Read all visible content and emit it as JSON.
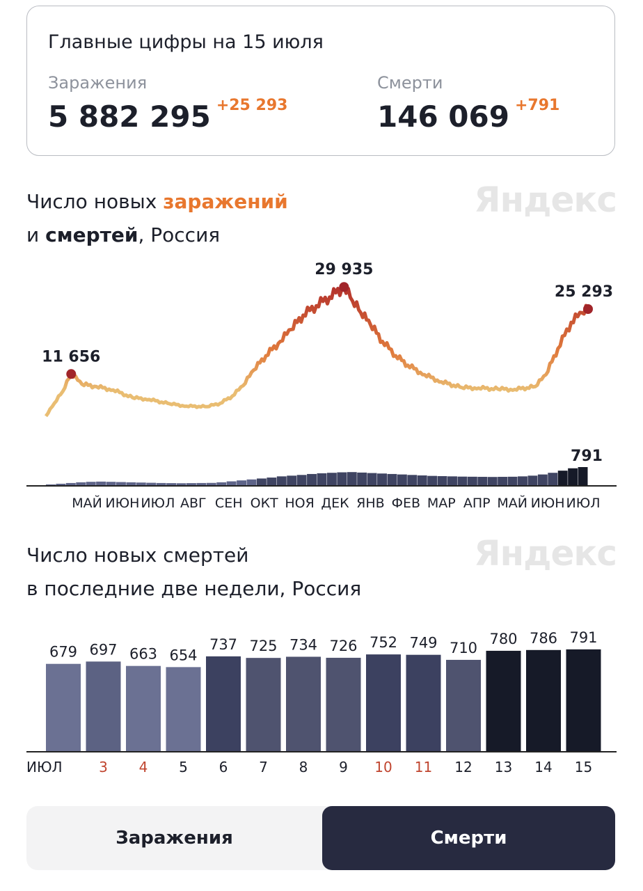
{
  "summary": {
    "title": "Главные цифры на 15 июля",
    "cases": {
      "label": "Заражения",
      "value": "5 882 295",
      "delta": "+25 293"
    },
    "deaths": {
      "label": "Смерти",
      "value": "146 069",
      "delta": "+791"
    }
  },
  "watermark": "Яндекс",
  "colors": {
    "accent": "#e8772e",
    "line_low": "#e9bd72",
    "line_high": "#b3302b",
    "dark": "#272a40",
    "holiday": "#c0452f"
  },
  "chart_data": [
    {
      "type": "line",
      "title_parts": [
        "Число новых ",
        "заражений",
        "и ",
        "смертей",
        ", Россия"
      ],
      "x_tick_labels": [
        "МАЙ",
        "ИЮН",
        "ИЮЛ",
        "АВГ",
        "СЕН",
        "ОКТ",
        "НОЯ",
        "ДЕК",
        "ЯНВ",
        "ФЕВ",
        "МАР",
        "АПР",
        "МАЙ",
        "ИЮН",
        "ИЮЛ"
      ],
      "xlim": [
        "2020-04-20",
        "2021-07-15"
      ],
      "ylim": [
        0,
        31000
      ],
      "series": [
        {
          "points": [
            [
              "2020-04-20",
              2800
            ],
            [
              "2020-04-27",
              5500
            ],
            [
              "2020-05-04",
              8000
            ],
            [
              "2020-05-11",
              11656
            ],
            [
              "2020-05-20",
              9500
            ],
            [
              "2020-06-01",
              9000
            ],
            [
              "2020-06-15",
              8300
            ],
            [
              "2020-07-01",
              6700
            ],
            [
              "2020-07-15",
              6300
            ],
            [
              "2020-08-01",
              5400
            ],
            [
              "2020-08-15",
              4900
            ],
            [
              "2020-09-01",
              4800
            ],
            [
              "2020-09-12",
              5500
            ],
            [
              "2020-09-22",
              7000
            ],
            [
              "2020-10-01",
              9200
            ],
            [
              "2020-10-10",
              12500
            ],
            [
              "2020-10-20",
              15500
            ],
            [
              "2020-11-01",
              18500
            ],
            [
              "2020-11-10",
              21000
            ],
            [
              "2020-11-20",
              24000
            ],
            [
              "2020-12-01",
              26000
            ],
            [
              "2020-12-12",
              27800
            ],
            [
              "2020-12-24",
              29935
            ],
            [
              "2020-12-31",
              27000
            ],
            [
              "2021-01-07",
              24500
            ],
            [
              "2021-01-15",
              22000
            ],
            [
              "2021-01-25",
              18500
            ],
            [
              "2021-02-05",
              15500
            ],
            [
              "2021-02-15",
              13500
            ],
            [
              "2021-03-01",
              11500
            ],
            [
              "2021-03-15",
              10000
            ],
            [
              "2021-04-01",
              8800
            ],
            [
              "2021-04-15",
              8700
            ],
            [
              "2021-05-01",
              8500
            ],
            [
              "2021-05-15",
              8400
            ],
            [
              "2021-06-01",
              9000
            ],
            [
              "2021-06-10",
              11500
            ],
            [
              "2021-06-20",
              17000
            ],
            [
              "2021-07-01",
              22500
            ],
            [
              "2021-07-10",
              24500
            ],
            [
              "2021-07-15",
              25293
            ]
          ]
        }
      ],
      "annotations": [
        {
          "date": "2020-05-11",
          "value": 11656,
          "label": "11 656"
        },
        {
          "date": "2020-12-24",
          "value": 29935,
          "label": "29 935"
        },
        {
          "date": "2021-07-15",
          "value": 25293,
          "label": "25 293"
        }
      ],
      "deaths_bars": {
        "ylim": [
          0,
          800
        ],
        "label": "791",
        "weekly": [
          60,
          90,
          120,
          150,
          170,
          180,
          170,
          160,
          150,
          140,
          130,
          120,
          115,
          110,
          115,
          120,
          125,
          150,
          190,
          230,
          270,
          310,
          350,
          400,
          430,
          460,
          500,
          530,
          550,
          570,
          580,
          560,
          540,
          520,
          500,
          480,
          460,
          440,
          420,
          410,
          400,
          390,
          385,
          380,
          375,
          380,
          385,
          400,
          430,
          480,
          550,
          640,
          740,
          791
        ]
      }
    },
    {
      "type": "bar",
      "title_lines": [
        "Число новых смертей",
        "в последние две недели, Россия"
      ],
      "categories": [
        "ИЮЛ",
        "3",
        "4",
        "5",
        "6",
        "7",
        "8",
        "9",
        "10",
        "11",
        "12",
        "13",
        "14",
        "15"
      ],
      "holidays": [
        "3",
        "4",
        "10",
        "11"
      ],
      "values": [
        679,
        697,
        663,
        654,
        737,
        725,
        734,
        726,
        752,
        749,
        710,
        780,
        786,
        791
      ],
      "bar_colors": [
        "#6b7193",
        "#5c6283",
        "#6b7193",
        "#6b7193",
        "#3c4160",
        "#4f536f",
        "#4f536f",
        "#4f536f",
        "#3c4160",
        "#3c4160",
        "#4f536f",
        "#161a28",
        "#161a28",
        "#161a28"
      ],
      "ylim": [
        0,
        800
      ]
    }
  ],
  "toggle": {
    "options": [
      "Заражения",
      "Смерти"
    ],
    "selected": "Смерти"
  }
}
